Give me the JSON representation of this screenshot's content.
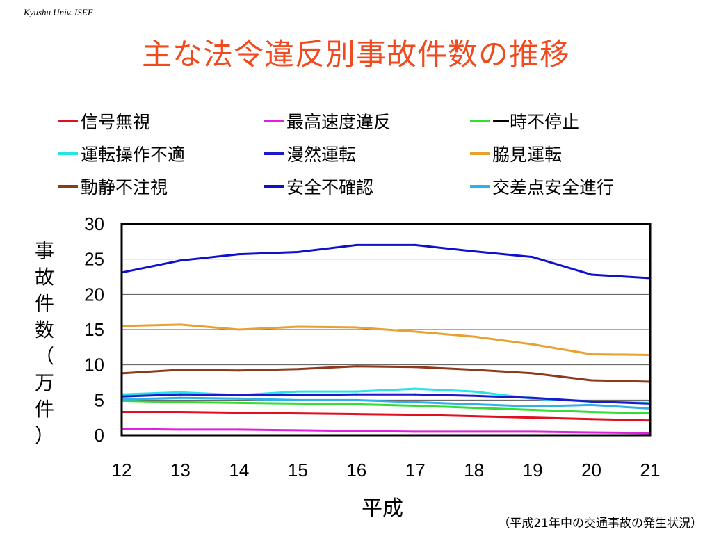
{
  "header": {
    "org": "Kyushu Univ. ISEE",
    "title": "主な法令違反別事故件数の推移"
  },
  "footer": {
    "source": "（平成21年中の交通事故の発生状況）"
  },
  "chart_data": {
    "type": "line",
    "title": "主な法令違反別事故件数の推移",
    "xlabel": "平成",
    "ylabel": "事故件数（万件）",
    "ylabel_chars": [
      "事",
      "故",
      "件",
      "数",
      "（",
      "万",
      "件",
      "）"
    ],
    "x": [
      "12",
      "13",
      "14",
      "15",
      "16",
      "17",
      "18",
      "19",
      "20",
      "21"
    ],
    "ylim": [
      0,
      30
    ],
    "yticks": [
      "0",
      "5",
      "10",
      "15",
      "20",
      "25",
      "30"
    ],
    "grid": true,
    "legend_position": "top",
    "series": [
      {
        "name": "信号無視",
        "color": "#e01020",
        "values": [
          3.3,
          3.3,
          3.2,
          3.1,
          3.0,
          2.9,
          2.7,
          2.5,
          2.3,
          2.1
        ]
      },
      {
        "name": "最高速度違反",
        "color": "#e020e0",
        "values": [
          0.9,
          0.8,
          0.8,
          0.7,
          0.6,
          0.5,
          0.5,
          0.5,
          0.4,
          0.3
        ]
      },
      {
        "name": "一時不停止",
        "color": "#33dd33",
        "values": [
          4.9,
          4.7,
          4.6,
          4.5,
          4.4,
          4.2,
          3.9,
          3.6,
          3.3,
          3.1
        ]
      },
      {
        "name": "運転操作不適",
        "color": "#22e6e6",
        "values": [
          5.8,
          6.1,
          5.7,
          6.2,
          6.2,
          6.6,
          6.2,
          5.2,
          4.8,
          4.6
        ]
      },
      {
        "name": "漫然運転",
        "color": "#1a1acc",
        "values": [
          5.5,
          5.8,
          5.7,
          5.7,
          5.8,
          5.8,
          5.6,
          5.3,
          4.8,
          4.5
        ]
      },
      {
        "name": "脇見運転",
        "color": "#e8a030",
        "values": [
          15.5,
          15.7,
          15.0,
          15.4,
          15.3,
          14.7,
          14.0,
          12.9,
          11.5,
          11.4
        ]
      },
      {
        "name": "動静不注視",
        "color": "#8b3a1a",
        "values": [
          8.8,
          9.3,
          9.2,
          9.4,
          9.8,
          9.7,
          9.3,
          8.8,
          7.8,
          7.6
        ]
      },
      {
        "name": "安全不確認",
        "color": "#1010cc",
        "values": [
          23.1,
          24.8,
          25.7,
          26.0,
          27.0,
          27.0,
          26.1,
          25.3,
          22.8,
          22.3
        ]
      },
      {
        "name": "交差点安全進行",
        "color": "#30b0e8",
        "values": [
          5.1,
          5.3,
          5.2,
          5.0,
          5.0,
          4.7,
          4.4,
          4.1,
          4.3,
          3.8
        ]
      }
    ]
  }
}
